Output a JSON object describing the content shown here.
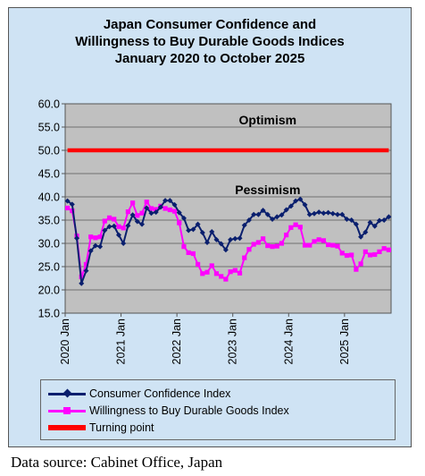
{
  "title_lines": [
    "Japan Consumer Confidence and",
    "Willingness to Buy Durable Goods Indices",
    "January 2020 to October 2025"
  ],
  "source": "Data source: Cabinet Office, Japan",
  "colors": {
    "frame_bg": "#cfe3f4",
    "plot_bg": "#c0c0c0",
    "consumer_confidence": "#0a1f6e",
    "durable_goods": "#ff00ff",
    "turning_point": "#ff0000"
  },
  "chart_data": {
    "type": "line",
    "x_unit": "month",
    "x_start": "2020-01",
    "x_end": "2025-10",
    "xticks": [
      "2020 Jan",
      "2021 Jan",
      "2022 Jan",
      "2023 Jan",
      "2024 Jan",
      "2025 Jan"
    ],
    "ylim": [
      15.0,
      60.0
    ],
    "yticks": [
      "15.0",
      "20.0",
      "25.0",
      "30.0",
      "35.0",
      "40.0",
      "45.0",
      "50.0",
      "55.0",
      "60.0"
    ],
    "grid": "horizontal",
    "legend_position": "bottom",
    "annotations": [
      {
        "text": "Optimism",
        "x": "2023-08",
        "y": 56.5
      },
      {
        "text": "Pessimism",
        "x": "2023-08",
        "y": 41.5
      }
    ],
    "series": [
      {
        "name": "Consumer Confidence Index",
        "color": "#0a1f6e",
        "marker": "diamond",
        "values": [
          39.1,
          38.4,
          31.1,
          21.4,
          24.1,
          28.4,
          29.5,
          29.3,
          32.8,
          33.6,
          33.7,
          31.8,
          30.0,
          33.8,
          36.1,
          34.7,
          34.1,
          37.6,
          36.5,
          36.7,
          37.8,
          39.2,
          39.2,
          38.3,
          36.6,
          35.4,
          32.8,
          33.0,
          34.1,
          32.3,
          30.2,
          32.5,
          30.8,
          29.9,
          28.6,
          30.8,
          31.0,
          31.1,
          33.9,
          35.0,
          36.2,
          36.2,
          37.1,
          36.2,
          35.2,
          35.7,
          36.1,
          37.2,
          38.0,
          39.1,
          39.5,
          38.3,
          36.2,
          36.4,
          36.7,
          36.5,
          36.6,
          36.4,
          36.2,
          36.2,
          35.2,
          35.0,
          34.1,
          31.4,
          32.4,
          34.5,
          33.7,
          34.9,
          35.0,
          35.7
        ]
      },
      {
        "name": "Willingness to Buy Durable Goods Index",
        "color": "#ff00ff",
        "marker": "square",
        "values": [
          37.6,
          37.0,
          31.6,
          22.8,
          25.5,
          31.4,
          31.2,
          31.4,
          34.8,
          35.5,
          35.2,
          33.6,
          33.3,
          36.8,
          38.7,
          36.0,
          36.5,
          38.9,
          37.5,
          37.3,
          38.0,
          37.5,
          37.2,
          36.9,
          34.4,
          29.3,
          28.0,
          27.8,
          25.5,
          23.5,
          23.8,
          25.2,
          23.5,
          22.9,
          22.3,
          23.9,
          24.2,
          23.6,
          26.9,
          28.7,
          29.8,
          30.2,
          31.0,
          29.5,
          29.3,
          29.4,
          30.0,
          31.8,
          33.4,
          34.0,
          33.5,
          29.6,
          29.6,
          30.4,
          30.8,
          30.6,
          29.7,
          29.6,
          29.4,
          27.9,
          27.4,
          27.5,
          24.4,
          25.6,
          28.2,
          27.5,
          27.6,
          28.2,
          28.9,
          28.6
        ]
      },
      {
        "name": "Turning point",
        "color": "#ff0000",
        "marker": "none",
        "values": [
          50.0,
          50.0
        ]
      }
    ]
  }
}
